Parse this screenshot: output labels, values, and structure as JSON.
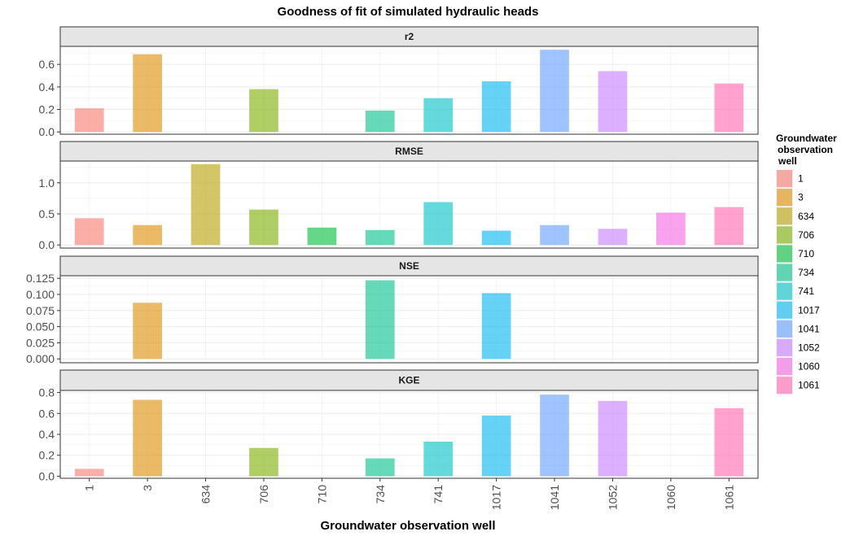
{
  "chart_data": {
    "type": "bar",
    "title": "Goodness of fit of simulated hydraulic heads",
    "xlabel": "Groundwater observation well",
    "categories": [
      "1",
      "3",
      "634",
      "706",
      "710",
      "734",
      "741",
      "1017",
      "1041",
      "1052",
      "1060",
      "1061"
    ],
    "colors": [
      "#F8766D",
      "#DE8C00",
      "#B79F00",
      "#7CAE00",
      "#00BA38",
      "#00C08B",
      "#00BFC4",
      "#00B4F0",
      "#619CFF",
      "#C77CFF",
      "#F564E3",
      "#FF64B0"
    ],
    "legend": {
      "title_lines": [
        "Groundwater",
        "observation",
        "well"
      ],
      "position": "right"
    },
    "grid": true,
    "panels": [
      {
        "name": "r2",
        "ylim": [
          -0.02,
          0.76
        ],
        "ticks": [
          0.0,
          0.2,
          0.4,
          0.6
        ],
        "tick_labels": [
          "0.0",
          "0.2",
          "0.4",
          "0.6"
        ],
        "values": [
          0.21,
          0.69,
          null,
          0.38,
          null,
          0.19,
          0.3,
          0.45,
          0.73,
          0.54,
          null,
          0.43
        ]
      },
      {
        "name": "RMSE",
        "ylim": [
          -0.05,
          1.35
        ],
        "ticks": [
          0.0,
          0.5,
          1.0
        ],
        "tick_labels": [
          "0.0",
          "0.5",
          "1.0"
        ],
        "values": [
          0.43,
          0.32,
          1.3,
          0.57,
          0.28,
          0.24,
          0.69,
          0.23,
          0.32,
          0.26,
          0.52,
          0.61
        ]
      },
      {
        "name": "NSE",
        "ylim": [
          -0.006,
          0.129
        ],
        "ticks": [
          0.0,
          0.025,
          0.05,
          0.075,
          0.1,
          0.125
        ],
        "tick_labels": [
          "0.000",
          "0.025",
          "0.050",
          "0.075",
          "0.100",
          "0.125"
        ],
        "values": [
          null,
          0.087,
          null,
          null,
          null,
          0.122,
          null,
          0.102,
          null,
          null,
          null,
          null
        ]
      },
      {
        "name": "KGE",
        "ylim": [
          -0.02,
          0.82
        ],
        "ticks": [
          0.0,
          0.2,
          0.4,
          0.6,
          0.8
        ],
        "tick_labels": [
          "0.0",
          "0.2",
          "0.4",
          "0.6",
          "0.8"
        ],
        "values": [
          0.07,
          0.73,
          null,
          0.27,
          null,
          0.17,
          0.33,
          0.58,
          0.78,
          0.72,
          null,
          0.65
        ]
      }
    ]
  }
}
